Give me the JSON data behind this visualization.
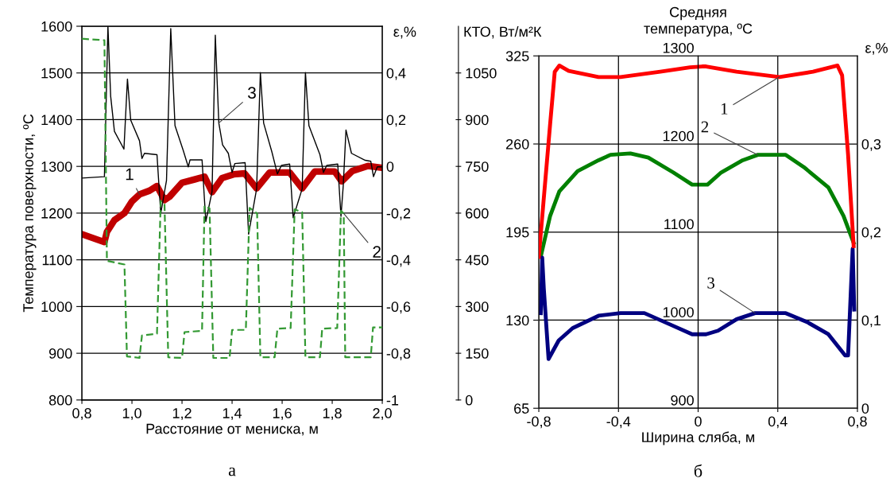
{
  "chart_data": [
    {
      "type": "line",
      "xlabel": "Расстояние от мениска, м",
      "ylabel": "Температура поверхности, ºC",
      "y2label": "ε,%",
      "y3label": "КТО, Вт/м²К",
      "annotations": [
        "а"
      ],
      "grid": "y",
      "xlim": [
        0.8,
        2.0
      ],
      "xticks": [
        {
          "value": 0.8,
          "label": "0,8"
        },
        {
          "value": 1.0,
          "label": "1,0"
        },
        {
          "value": 1.2,
          "label": "1,2"
        },
        {
          "value": 1.4,
          "label": "1,4"
        },
        {
          "value": 1.6,
          "label": "1,6"
        },
        {
          "value": 1.8,
          "label": "1,8"
        },
        {
          "value": 2.0,
          "label": "2,0"
        }
      ],
      "ylim": [
        800,
        1600
      ],
      "yticks": [
        800,
        900,
        1000,
        1100,
        1200,
        1300,
        1400,
        1500,
        1600
      ],
      "y2lim": [
        -1,
        0.6
      ],
      "y2ticks": [
        -1,
        {
          "value": -0.8,
          "label": "-0,8"
        },
        {
          "value": -0.6,
          "label": "-0,6"
        },
        {
          "value": -0.4,
          "label": "-0,4"
        },
        {
          "value": -0.2,
          "label": "-0,2"
        },
        0,
        {
          "value": 0.2,
          "label": "0,2"
        },
        {
          "value": 0.4,
          "label": "0,4"
        }
      ],
      "y3lim": [
        0,
        1200
      ],
      "y3ticks": [
        0,
        150,
        300,
        450,
        600,
        750,
        900,
        1050
      ],
      "series": [
        {
          "name": "1",
          "color": "#c00000",
          "axis": "y",
          "line_style": "solid",
          "x": [
            0.8,
            0.89,
            0.9,
            0.93,
            0.97,
            1.0,
            1.03,
            1.07,
            1.1,
            1.13,
            1.15,
            1.2,
            1.25,
            1.29,
            1.32,
            1.36,
            1.406,
            1.45,
            1.498,
            1.55,
            1.63,
            1.68,
            1.73,
            1.81,
            1.838,
            1.88,
            1.943,
            2.0
          ],
          "values": [
            1155,
            1138,
            1160,
            1185,
            1200,
            1225,
            1240,
            1248,
            1258,
            1228,
            1235,
            1265,
            1272,
            1278,
            1245,
            1275,
            1283,
            1285,
            1253,
            1287,
            1287,
            1253,
            1289,
            1289,
            1268,
            1290,
            1301,
            1297
          ]
        },
        {
          "name": "2",
          "color": "#339933",
          "axis": "y3",
          "line_style": "dashed",
          "x": [
            0.8,
            0.89,
            0.9,
            0.97,
            0.98,
            1.03,
            1.04,
            1.1,
            1.115,
            1.13,
            1.145,
            1.2,
            1.21,
            1.28,
            1.29,
            1.31,
            1.325,
            1.39,
            1.4,
            1.455,
            1.47,
            1.5,
            1.513,
            1.57,
            1.581,
            1.634,
            1.65,
            1.68,
            1.693,
            1.751,
            1.76,
            1.82,
            1.835,
            1.846,
            1.852,
            1.954,
            1.963,
            2.0
          ],
          "values": [
            1160,
            1155,
            447,
            435,
            140,
            135,
            207,
            213,
            639,
            630,
            137,
            135,
            218,
            222,
            624,
            615,
            135,
            135,
            225,
            225,
            617,
            599,
            137,
            137,
            229,
            231,
            612,
            603,
            137,
            137,
            229,
            231,
            607,
            599,
            137,
            137,
            233,
            233
          ]
        },
        {
          "name": "3",
          "color": "#000000",
          "axis": "y2",
          "line_style": "solid",
          "x": [
            0.8,
            0.89,
            0.904,
            0.915,
            0.93,
            0.968,
            0.982,
            0.995,
            1.03,
            1.04,
            1.05,
            1.1,
            1.115,
            1.138,
            1.155,
            1.172,
            1.205,
            1.225,
            1.232,
            1.28,
            1.295,
            1.32,
            1.333,
            1.347,
            1.362,
            1.385,
            1.4,
            1.411,
            1.452,
            1.466,
            1.498,
            1.513,
            1.526,
            1.559,
            1.581,
            1.597,
            1.63,
            1.644,
            1.68,
            1.693,
            1.707,
            1.751,
            1.765,
            1.778,
            1.822,
            1.835,
            1.844,
            1.855,
            1.877,
            1.932,
            1.954,
            1.965,
            1.98,
            2.0
          ],
          "values": [
            -0.05,
            -0.044,
            0.6,
            0.3,
            0.15,
            0.074,
            0.374,
            0.198,
            0.11,
            0.034,
            0.056,
            0.05,
            -0.202,
            -0.06,
            0.59,
            0.174,
            0.068,
            -0.002,
            0.028,
            0.028,
            -0.236,
            -0.108,
            0.562,
            0.186,
            0.092,
            0.056,
            -0.026,
            0.012,
            0.016,
            -0.29,
            -0.096,
            0.402,
            0.186,
            0.062,
            -0.032,
            0.004,
            0.01,
            -0.22,
            -0.096,
            0.402,
            0.174,
            0.05,
            -0.026,
            0.004,
            0.01,
            -0.214,
            -0.084,
            0.156,
            0.056,
            0.026,
            0.022,
            -0.044,
            -0.002,
            -0.002
          ]
        }
      ]
    },
    {
      "type": "line",
      "xlabel": "Ширина сляба, м",
      "y2label": "ε,%",
      "y3label": "Средняя\nтемпература, ºC",
      "annotations": [
        "б"
      ],
      "grid": true,
      "xlim": [
        -0.8,
        0.8
      ],
      "xticks": [
        {
          "value": -0.8,
          "label": "-0,8"
        },
        {
          "value": -0.4,
          "label": "-0,4"
        },
        0,
        {
          "value": 0.4,
          "label": "0,4"
        },
        {
          "value": 0.8,
          "label": "0,8"
        }
      ],
      "ylim": [
        65,
        325
      ],
      "yticks": [
        65,
        130,
        195,
        260,
        325
      ],
      "y2lim": [
        0,
        0.4
      ],
      "y2ticks": [
        0,
        {
          "value": 0.1,
          "label": "0,1"
        },
        {
          "value": 0.2,
          "label": "0,2"
        },
        {
          "value": 0.3,
          "label": "0,3"
        }
      ],
      "y3lim": [
        900,
        1300
      ],
      "y3ticks": [
        900,
        1000,
        1100,
        1200,
        1300
      ],
      "series": [
        {
          "name": "1",
          "color": "#ff0000",
          "axis": "y3",
          "line_style": "solid",
          "x": [
            -0.8,
            -0.743,
            -0.72,
            -0.697,
            -0.65,
            -0.5,
            -0.39,
            -0.19,
            -0.04,
            0.02,
            0.04,
            0.193,
            0.408,
            0.577,
            0.7,
            0.723,
            0.753,
            0.781
          ],
          "values": [
            1072,
            1223,
            1282,
            1289,
            1283,
            1276,
            1276,
            1282,
            1287,
            1288,
            1288,
            1282,
            1276,
            1282,
            1289,
            1278,
            1188,
            1084
          ]
        },
        {
          "name": "2",
          "color": "#008000",
          "axis": "y",
          "line_style": "solid",
          "x": [
            -0.79,
            -0.743,
            -0.697,
            -0.605,
            -0.5,
            -0.44,
            -0.34,
            -0.25,
            -0.125,
            -0.03,
            0.02,
            0.047,
            0.116,
            0.224,
            0.3,
            0.44,
            0.53,
            0.654,
            0.73,
            0.781
          ],
          "values": [
            177,
            207,
            225,
            240,
            248,
            252,
            253,
            250,
            239,
            230,
            230,
            230,
            239,
            248,
            252,
            252,
            243,
            228,
            207,
            187
          ]
        },
        {
          "name": "3",
          "color": "#000080",
          "axis": "y2",
          "line_style": "solid",
          "x": [
            -0.79,
            -0.783,
            -0.775,
            -0.751,
            -0.7,
            -0.63,
            -0.5,
            -0.39,
            -0.27,
            -0.13,
            -0.03,
            0.04,
            0.1,
            0.193,
            0.286,
            0.44,
            0.546,
            0.654,
            0.738,
            0.753,
            0.776,
            0.784
          ],
          "values": [
            0.108,
            0.171,
            0.136,
            0.056,
            0.077,
            0.091,
            0.105,
            0.108,
            0.108,
            0.094,
            0.084,
            0.084,
            0.088,
            0.101,
            0.108,
            0.108,
            0.098,
            0.084,
            0.06,
            0.06,
            0.181,
            0.112
          ]
        }
      ]
    }
  ]
}
